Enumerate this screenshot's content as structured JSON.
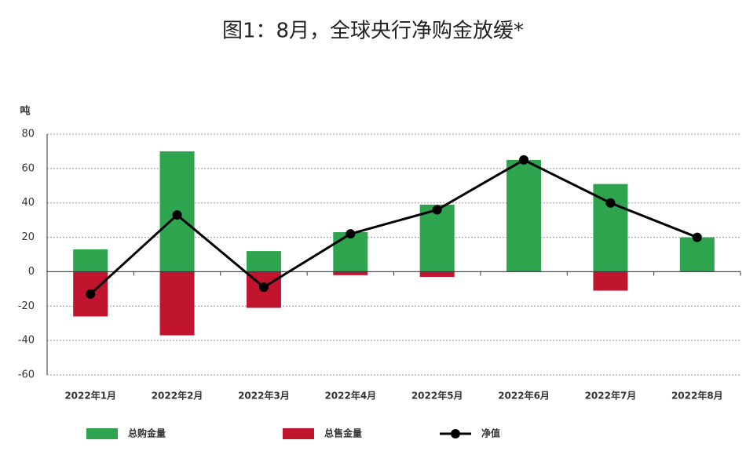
{
  "chart_data": {
    "type": "bar",
    "title": "图1：8月，全球央行净购金放缓*",
    "y_label": "吨",
    "categories": [
      "2022年1月",
      "2022年2月",
      "2022年3月",
      "2022年4月",
      "2022年5月",
      "2022年6月",
      "2022年7月",
      "2022年8月"
    ],
    "series": [
      {
        "name": "总购金量",
        "type": "bar",
        "color": "#2ea44f",
        "values": [
          13,
          70,
          12,
          23,
          39,
          65,
          51,
          20
        ]
      },
      {
        "name": "总售金量",
        "type": "bar",
        "color": "#c0142f",
        "values": [
          -26,
          -37,
          -21,
          -2,
          -3,
          0,
          -11,
          0
        ]
      },
      {
        "name": "净值",
        "type": "line",
        "color": "#000000",
        "values": [
          -13,
          33,
          -9,
          22,
          36,
          65,
          40,
          20
        ]
      }
    ],
    "ylim": [
      -60,
      80
    ],
    "yticks": [
      -60,
      -40,
      -20,
      0,
      20,
      40,
      60,
      80
    ],
    "grid": true
  }
}
